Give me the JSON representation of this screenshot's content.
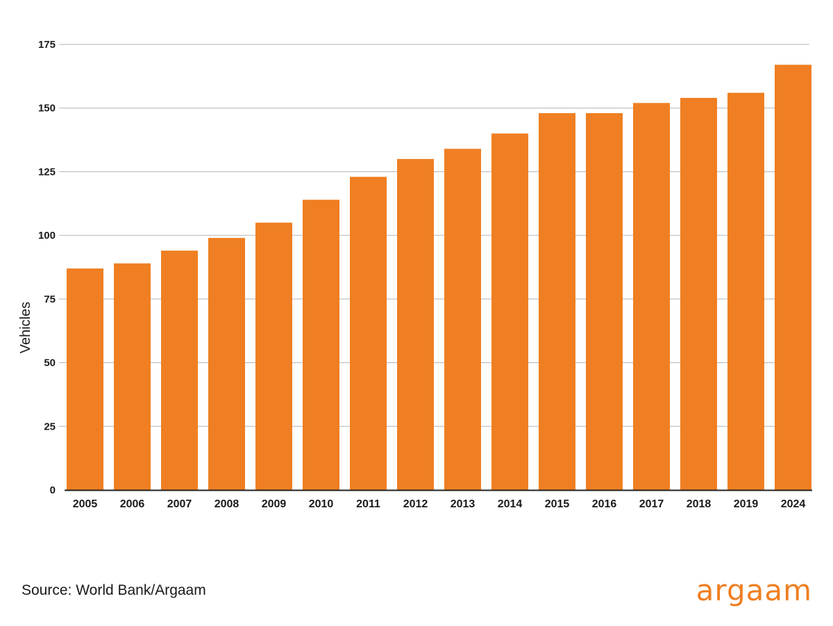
{
  "colors": {
    "bar": "#ef7f22",
    "grid": "#b3b3b3",
    "axis": "#222222",
    "logo": "#ef7f22"
  },
  "source": "Source: World Bank/Argaam",
  "logo": "argaam",
  "chart_data": {
    "type": "bar",
    "title": "",
    "xlabel": "",
    "ylabel": "Vehicles",
    "ylim": [
      0,
      175
    ],
    "yticks": [
      0,
      25,
      50,
      75,
      100,
      125,
      150,
      175
    ],
    "grid": true,
    "categories": [
      "2005",
      "2006",
      "2007",
      "2008",
      "2009",
      "2010",
      "2011",
      "2012",
      "2013",
      "2014",
      "2015",
      "2016",
      "2017",
      "2018",
      "2019",
      "2024"
    ],
    "values": [
      87,
      89,
      94,
      99,
      105,
      114,
      123,
      130,
      134,
      140,
      148,
      148,
      152,
      154,
      156,
      167
    ]
  }
}
